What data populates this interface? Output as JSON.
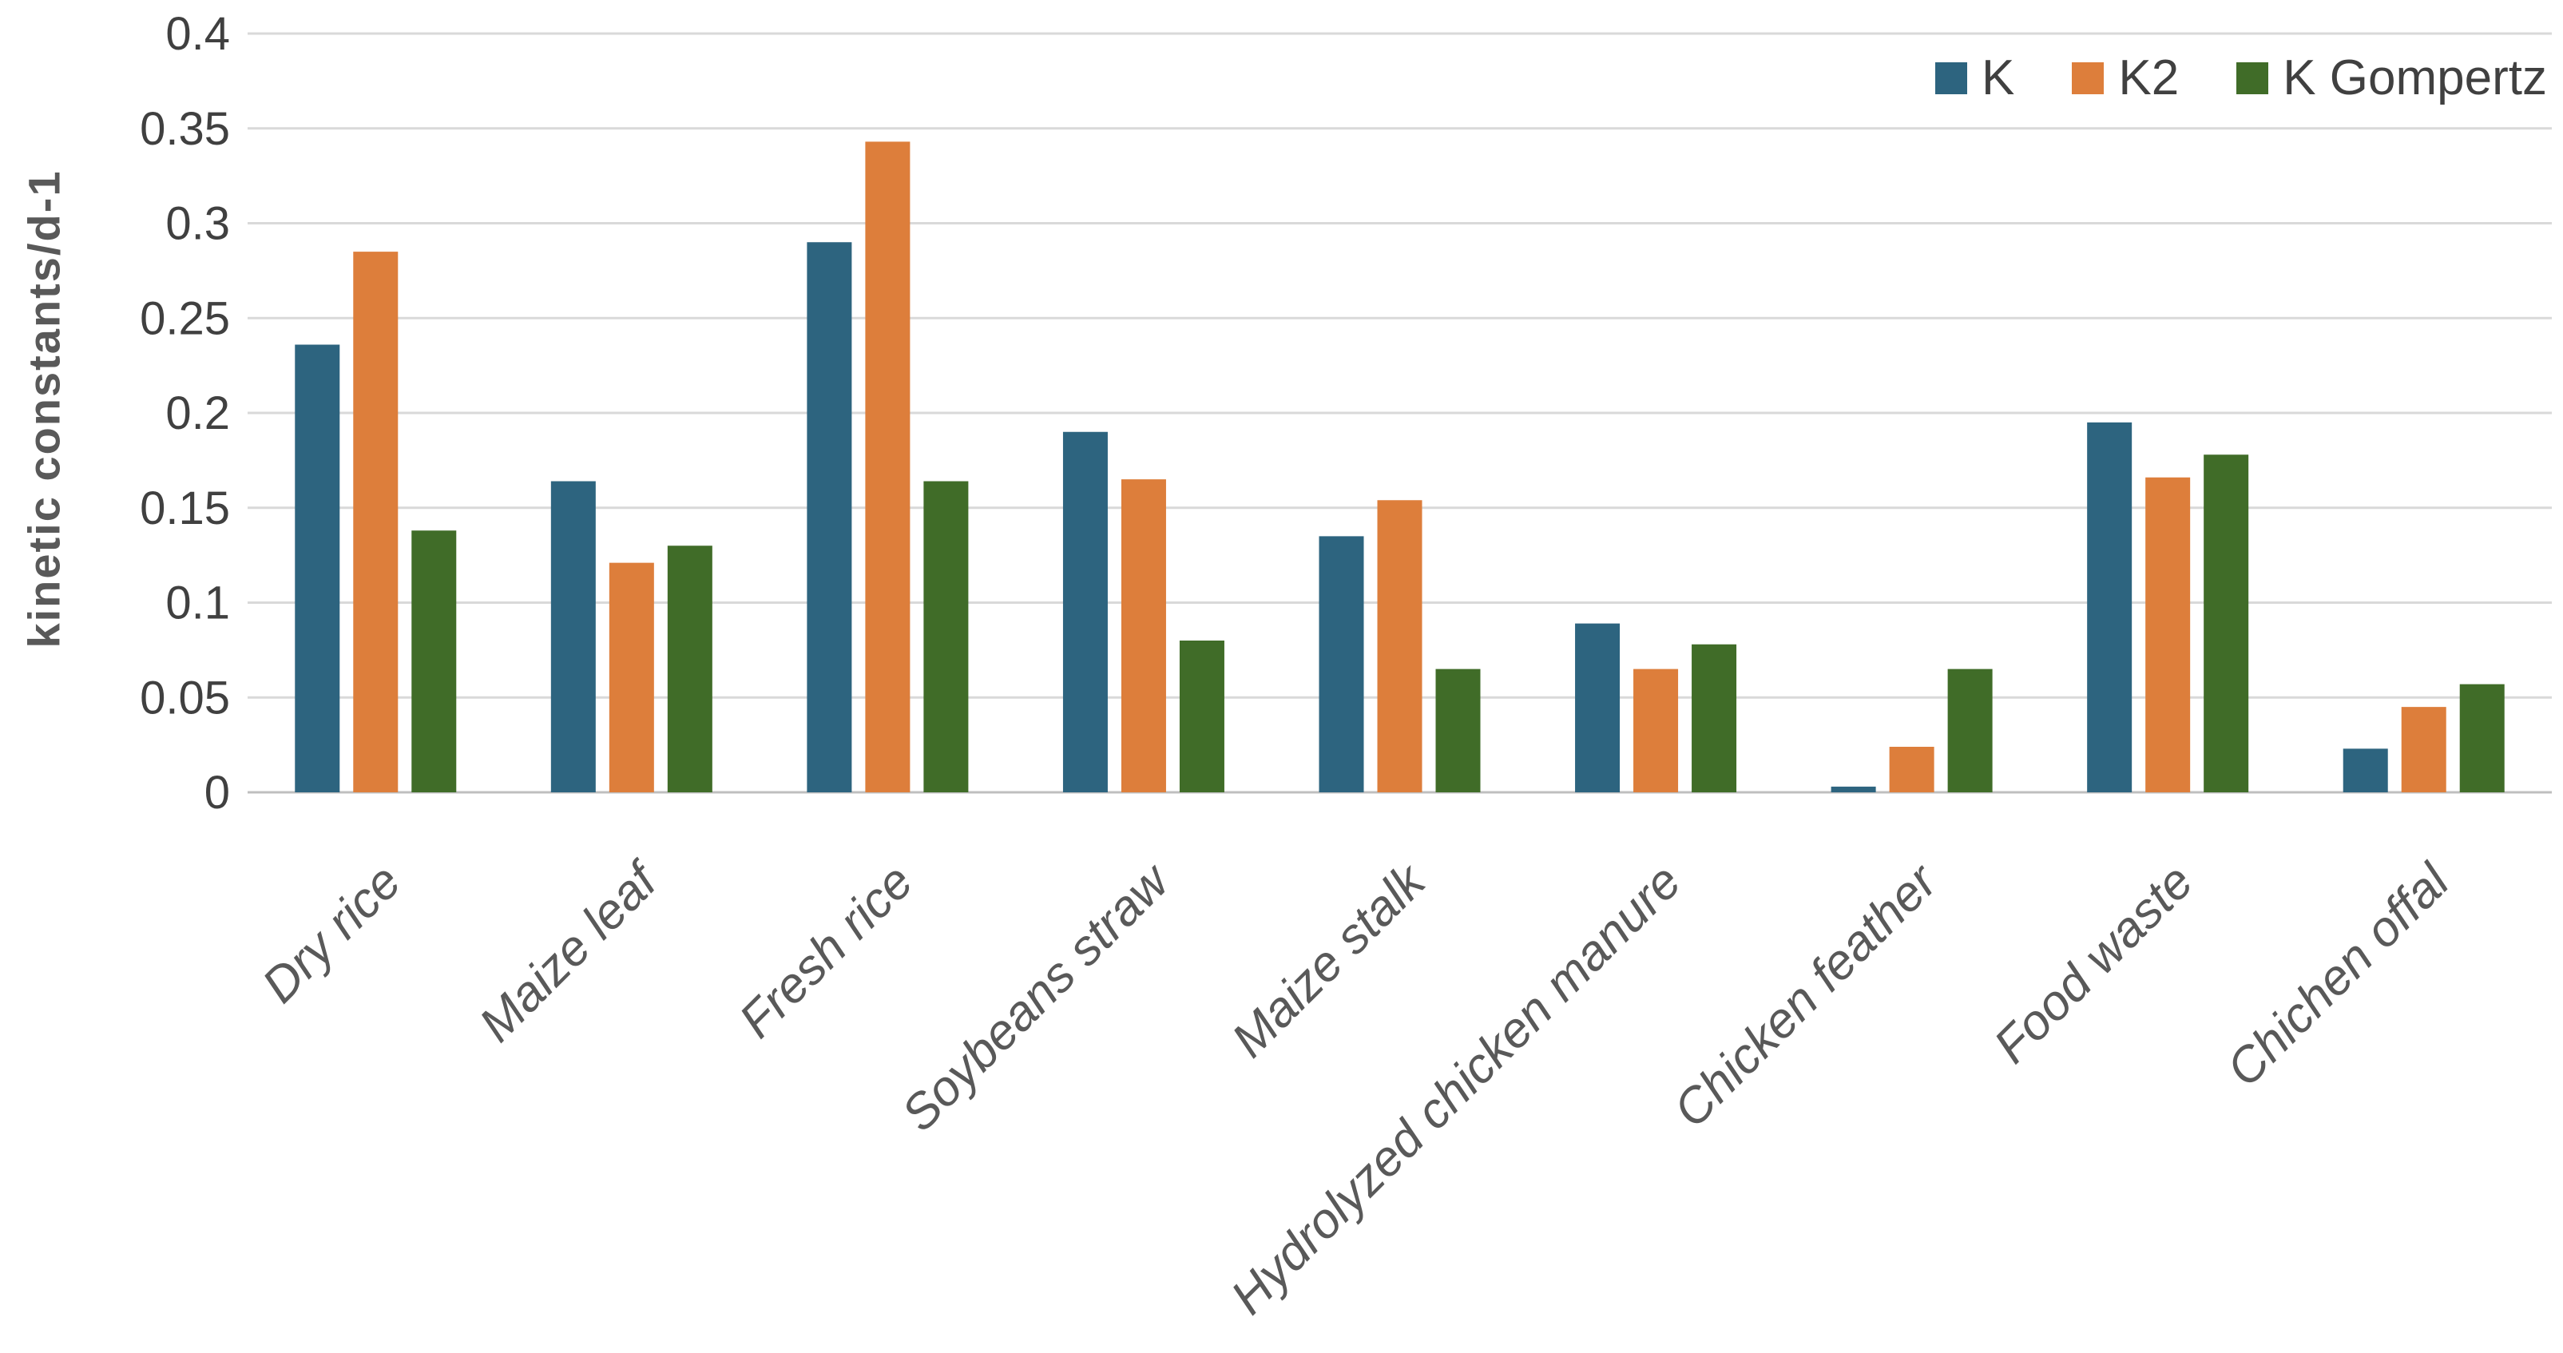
{
  "chart_data": {
    "type": "bar",
    "title": "",
    "xlabel": "",
    "ylabel": "kinetic constants/d-1",
    "ylim": [
      0,
      0.4
    ],
    "ytick_step": 0.05,
    "yticks": [
      "0",
      "0.05",
      "0.1",
      "0.15",
      "0.2",
      "0.25",
      "0.3",
      "0.35",
      "0.4"
    ],
    "grid": "horizontal",
    "legend_position": "top-right",
    "categories": [
      "Dry rice",
      "Maize leaf",
      "Fresh rice",
      "Soybeans straw",
      "Maize stalk",
      "Hydrolyzed chicken manure",
      "Chicken feather",
      "Food waste",
      "Chichen offal"
    ],
    "series": [
      {
        "name": "K",
        "color": "#2D647F",
        "values": [
          0.236,
          0.164,
          0.29,
          0.19,
          0.135,
          0.089,
          0.003,
          0.195,
          0.023
        ]
      },
      {
        "name": "K2",
        "color": "#DD7E3B",
        "values": [
          0.285,
          0.121,
          0.343,
          0.165,
          0.154,
          0.065,
          0.024,
          0.166,
          0.045
        ]
      },
      {
        "name": "K Gompertz",
        "color": "#406C28",
        "values": [
          0.138,
          0.13,
          0.164,
          0.08,
          0.065,
          0.078,
          0.065,
          0.178,
          0.057
        ]
      }
    ]
  },
  "colors": {
    "gridline": "#D9D9D9",
    "axis_line": "#BFBFBF",
    "tick_text": "#404040",
    "label_text": "#595959",
    "background": "#FFFFFF"
  }
}
